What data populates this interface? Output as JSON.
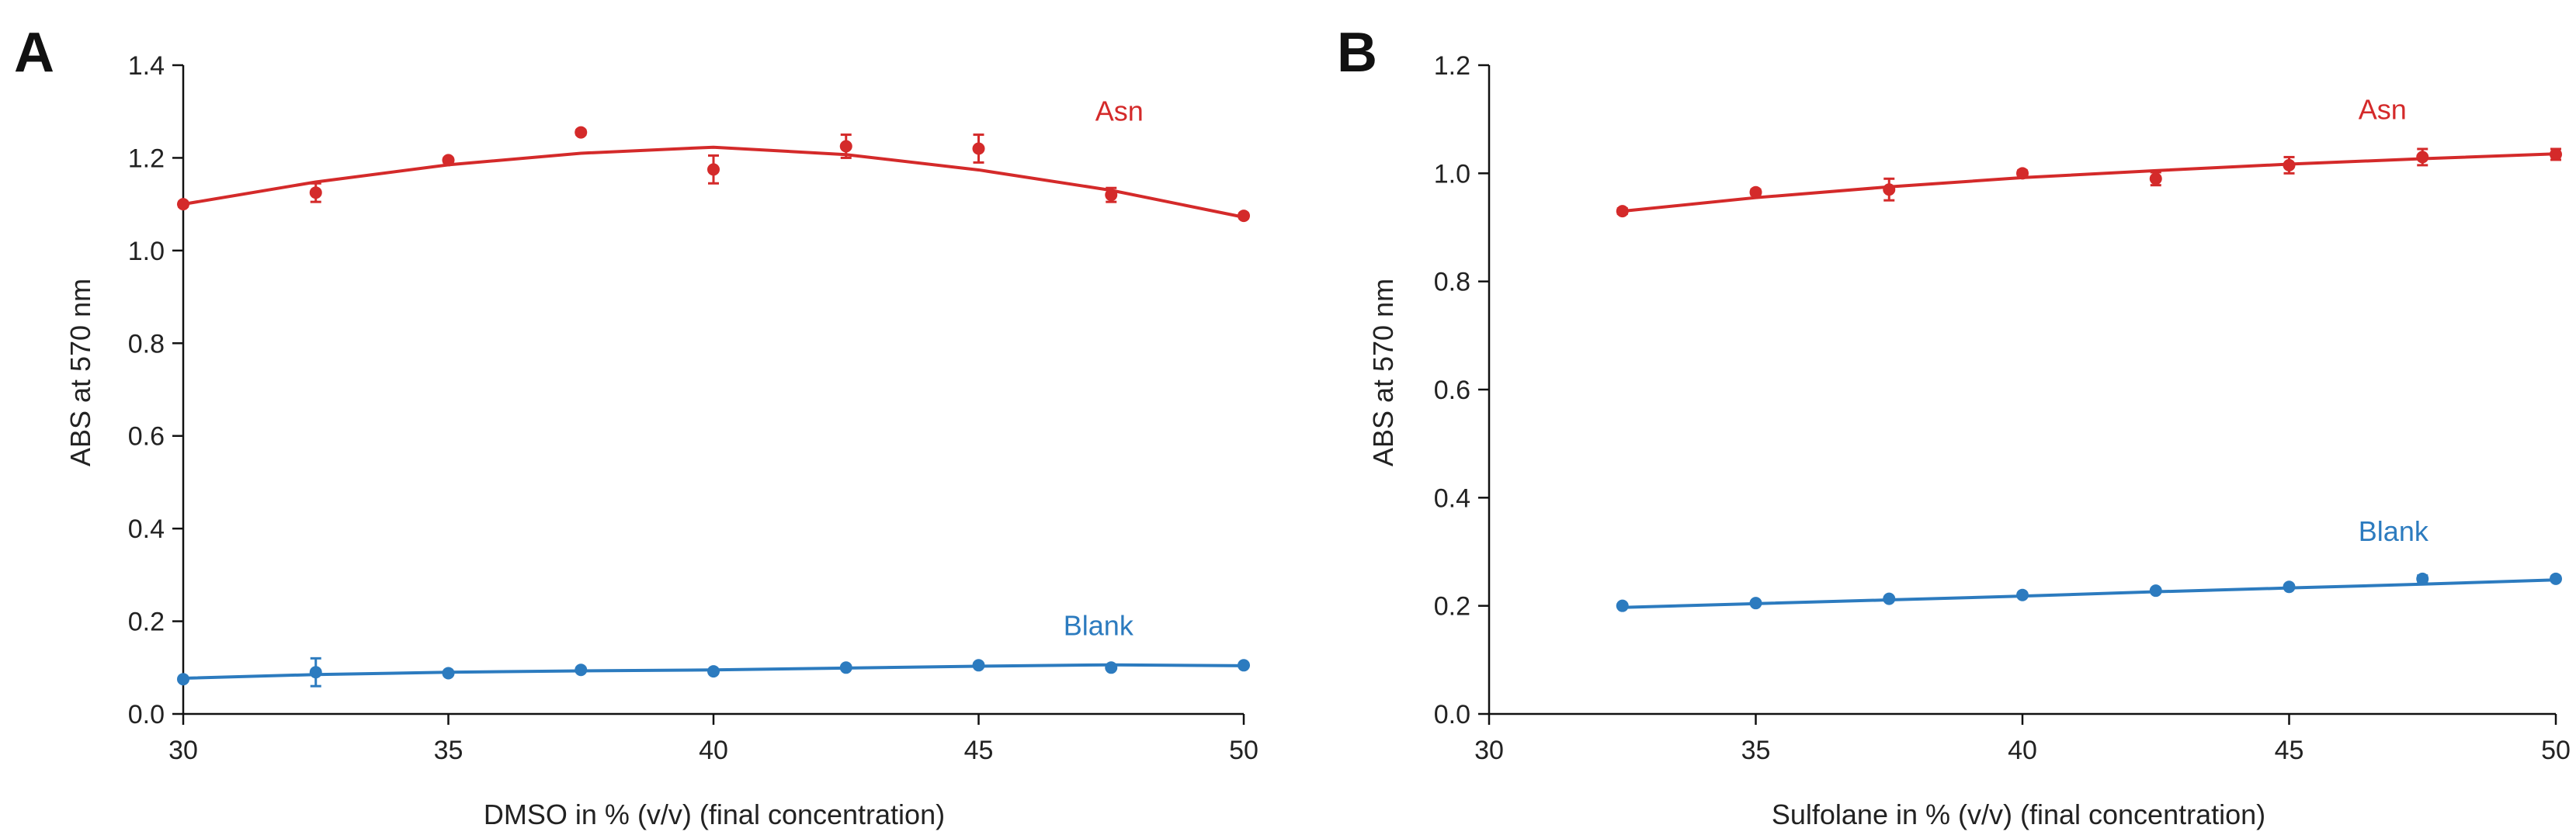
{
  "colors": {
    "asn": "#d42a2a",
    "blank": "#2c7bbf",
    "axis": "#111111"
  },
  "chart_data": [
    {
      "panel": "A",
      "type": "scatter",
      "xlabel": "DMSO in % (v/v) (final concentration)",
      "ylabel": "ABS at 570 nm",
      "xlim": [
        30,
        50
      ],
      "ylim": [
        0.0,
        1.4
      ],
      "xticks": [
        30,
        35,
        40,
        45,
        50
      ],
      "yticks": [
        0.0,
        0.2,
        0.4,
        0.6,
        0.8,
        1.0,
        1.2,
        1.4
      ],
      "ytick_labels": [
        "0.0",
        "0.2",
        "0.4",
        "0.6",
        "0.8",
        "1.0",
        "1.2",
        "1.4"
      ],
      "series": [
        {
          "name": "Asn",
          "label_at": [
            47.2,
            1.28
          ],
          "x": [
            30,
            32.5,
            35,
            37.5,
            40,
            42.5,
            45,
            47.5,
            50
          ],
          "y": [
            1.1,
            1.125,
            1.195,
            1.255,
            1.175,
            1.225,
            1.22,
            1.12,
            1.075
          ],
          "err": [
            0.005,
            0.02,
            0.005,
            0.005,
            0.03,
            0.025,
            0.03,
            0.015,
            0.005
          ],
          "fit": [
            1.1,
            1.148,
            1.185,
            1.21,
            1.223,
            1.207,
            1.174,
            1.13,
            1.072
          ]
        },
        {
          "name": "Blank",
          "label_at": [
            46.6,
            0.17
          ],
          "x": [
            30,
            32.5,
            35,
            37.5,
            40,
            42.5,
            45,
            47.5,
            50
          ],
          "y": [
            0.075,
            0.09,
            0.088,
            0.095,
            0.092,
            0.1,
            0.105,
            0.1,
            0.105
          ],
          "err": [
            0.003,
            0.03,
            0.003,
            0.004,
            0.003,
            0.003,
            0.004,
            0.003,
            0.003
          ],
          "fit": [
            0.077,
            0.085,
            0.09,
            0.093,
            0.095,
            0.099,
            0.103,
            0.106,
            0.104
          ]
        }
      ]
    },
    {
      "panel": "B",
      "type": "scatter",
      "xlabel": "Sulfolane in % (v/v) (final concentration)",
      "ylabel": "ABS at 570 nm",
      "xlim": [
        30,
        50
      ],
      "ylim": [
        0.0,
        1.2
      ],
      "xticks": [
        30,
        35,
        40,
        45,
        50
      ],
      "yticks": [
        0.0,
        0.2,
        0.4,
        0.6,
        0.8,
        1.0,
        1.2
      ],
      "ytick_labels": [
        "0.0",
        "0.2",
        "0.4",
        "0.6",
        "0.8",
        "1.0",
        "1.2"
      ],
      "series": [
        {
          "name": "Asn",
          "label_at": [
            46.3,
            1.1
          ],
          "x": [
            32.5,
            35,
            37.5,
            40,
            42.5,
            45,
            47.5,
            50
          ],
          "y": [
            0.93,
            0.965,
            0.97,
            1.0,
            0.99,
            1.015,
            1.03,
            1.035
          ],
          "err": [
            0.005,
            0.005,
            0.02,
            0.005,
            0.012,
            0.015,
            0.015,
            0.01
          ],
          "fit": [
            0.93,
            0.955,
            0.975,
            0.992,
            1.005,
            1.017,
            1.027,
            1.036
          ]
        },
        {
          "name": "Blank",
          "label_at": [
            46.3,
            0.32
          ],
          "x": [
            32.5,
            35,
            37.5,
            40,
            42.5,
            45,
            47.5,
            50
          ],
          "y": [
            0.2,
            0.205,
            0.213,
            0.22,
            0.228,
            0.235,
            0.25,
            0.25
          ],
          "err": [
            0.003,
            0.003,
            0.003,
            0.003,
            0.003,
            0.003,
            0.006,
            0.003
          ],
          "fit": [
            0.197,
            0.204,
            0.211,
            0.218,
            0.226,
            0.233,
            0.24,
            0.248
          ]
        }
      ]
    }
  ]
}
